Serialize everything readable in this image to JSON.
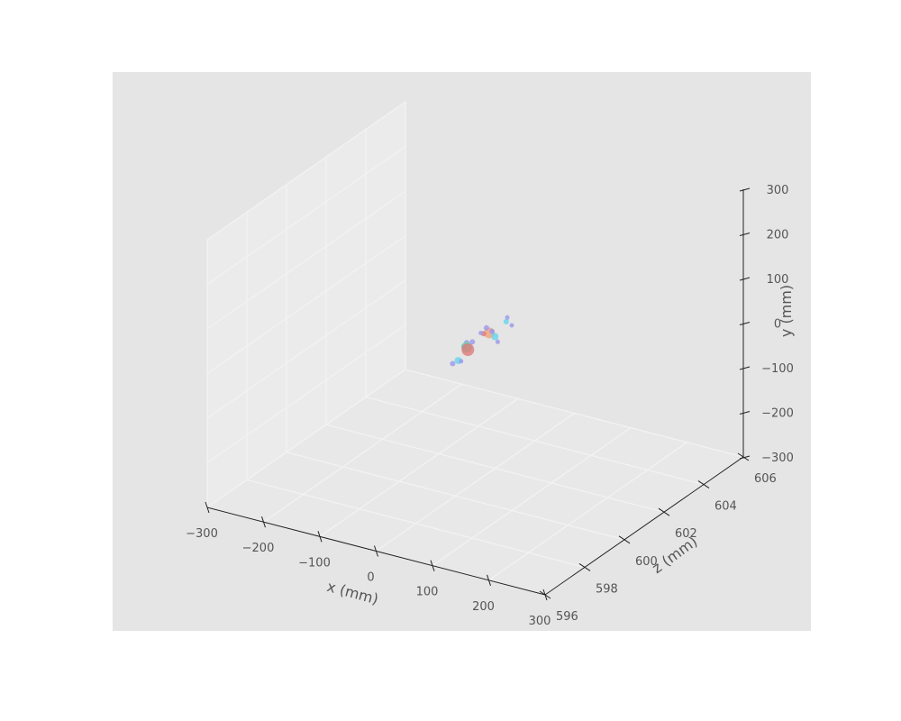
{
  "chart_data": {
    "type": "scatter",
    "projection": "3d",
    "title": "",
    "xlabel": "x (mm)",
    "ylabel": "y (mm)",
    "zlabel": "z (mm)",
    "xlim": [
      -300,
      300
    ],
    "ylim": [
      -300,
      300
    ],
    "zlim": [
      596,
      606
    ],
    "x_ticks": [
      -300,
      -200,
      -100,
      0,
      100,
      200,
      300
    ],
    "y_ticks": [
      -300,
      -200,
      -100,
      0,
      100,
      200,
      300
    ],
    "z_ticks": [
      596,
      598,
      600,
      602,
      604,
      606
    ],
    "x_tick_labels": [
      "−300",
      "−200",
      "−100",
      "0",
      "100",
      "200",
      "300"
    ],
    "y_tick_labels": [
      "−300",
      "−200",
      "−100",
      "0",
      "100",
      "200",
      "300"
    ],
    "z_tick_labels": [
      "596",
      "598",
      "600",
      "602",
      "604",
      "606"
    ],
    "grid": true,
    "legend": "none",
    "colors": {
      "background": "#e5e5e5",
      "pane": "#ebebeb",
      "floor": "#e8e8e8",
      "grid": "#f2f2f2",
      "axis": "#222222",
      "text": "#555555"
    },
    "points": [
      {
        "x": 20,
        "y": 50,
        "z": 600,
        "size": 6,
        "color": "#9999ee"
      },
      {
        "x": 15,
        "y": 40,
        "z": 600,
        "size": 6,
        "color": "#9999ee"
      },
      {
        "x": 30,
        "y": 55,
        "z": 600,
        "size": 6,
        "color": "#9999ee"
      },
      {
        "x": 20,
        "y": 40,
        "z": 600,
        "size": 12,
        "color": "#66d4aa"
      },
      {
        "x": 22,
        "y": 35,
        "z": 600,
        "size": 14,
        "color": "#e07a7a"
      },
      {
        "x": 5,
        "y": 5,
        "z": 600,
        "size": 8,
        "color": "#66d4ee"
      },
      {
        "x": -5,
        "y": -5,
        "z": 600,
        "size": 6,
        "color": "#9999ee"
      },
      {
        "x": 10,
        "y": 5,
        "z": 600,
        "size": 5,
        "color": "#9999ee"
      },
      {
        "x": 60,
        "y": 85,
        "z": 600,
        "size": 12,
        "color": "#f2a47c"
      },
      {
        "x": 55,
        "y": 95,
        "z": 600,
        "size": 6,
        "color": "#9999ee"
      },
      {
        "x": 65,
        "y": 90,
        "z": 600,
        "size": 6,
        "color": "#9999ee"
      },
      {
        "x": 70,
        "y": 80,
        "z": 600,
        "size": 8,
        "color": "#66d4ee"
      },
      {
        "x": 75,
        "y": 70,
        "z": 600,
        "size": 5,
        "color": "#9999ee"
      },
      {
        "x": 50,
        "y": 80,
        "z": 600,
        "size": 6,
        "color": "#e07a7a"
      },
      {
        "x": 45,
        "y": 80,
        "z": 600,
        "size": 5,
        "color": "#9999ee"
      },
      {
        "x": 90,
        "y": 120,
        "z": 600,
        "size": 6,
        "color": "#66d4ee"
      },
      {
        "x": 92,
        "y": 130,
        "z": 600,
        "size": 5,
        "color": "#9999ee"
      },
      {
        "x": 100,
        "y": 115,
        "z": 600,
        "size": 5,
        "color": "#9999ee"
      }
    ]
  }
}
